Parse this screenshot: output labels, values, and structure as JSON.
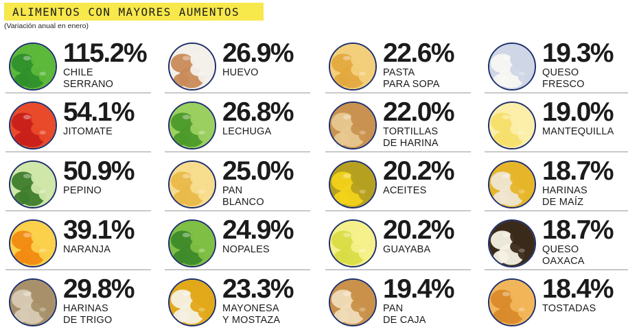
{
  "header": {
    "title": "ALIMENTOS CON MAYORES AUMENTOS",
    "subtitle": "(Variación anual en enero)",
    "accent_color": "#f7e84b",
    "ring_color": "#1e2f6b"
  },
  "items": [
    {
      "pct": "115.2%",
      "line1": "CHILE",
      "line2": "SERRANO",
      "icon": "chile-serrano-icon",
      "colors": [
        "#2f8f2a",
        "#5cb83a"
      ]
    },
    {
      "pct": "54.1%",
      "line1": "JITOMATE",
      "line2": "",
      "icon": "jitomate-icon",
      "colors": [
        "#c8201a",
        "#e94a2a"
      ]
    },
    {
      "pct": "50.9%",
      "line1": "PEPINO",
      "line2": "",
      "icon": "pepino-icon",
      "colors": [
        "#3e7d2c",
        "#cfe7a8"
      ]
    },
    {
      "pct": "39.1%",
      "line1": "NARANJA",
      "line2": "",
      "icon": "naranja-icon",
      "colors": [
        "#f28a12",
        "#fbd04a"
      ]
    },
    {
      "pct": "29.8%",
      "line1": "HARINAS",
      "line2": "DE TRIGO",
      "icon": "harina-trigo-icon",
      "colors": [
        "#d8cbb4",
        "#a8916a"
      ]
    },
    {
      "pct": "26.9%",
      "line1": "HUEVO",
      "line2": "",
      "icon": "huevo-icon",
      "colors": [
        "#c98a5a",
        "#f3f0ea"
      ]
    },
    {
      "pct": "26.8%",
      "line1": "LECHUGA",
      "line2": "",
      "icon": "lechuga-icon",
      "colors": [
        "#4c9a2a",
        "#9bd060"
      ]
    },
    {
      "pct": "25.0%",
      "line1": "PAN",
      "line2": "BLANCO",
      "icon": "pan-blanco-icon",
      "colors": [
        "#e9b94a",
        "#f7dc8e"
      ]
    },
    {
      "pct": "24.9%",
      "line1": "NOPALES",
      "line2": "",
      "icon": "nopales-icon",
      "colors": [
        "#3f8a2a",
        "#7fbf45"
      ]
    },
    {
      "pct": "23.3%",
      "line1": "MAYONESA",
      "line2": "Y MOSTAZA",
      "icon": "mayonesa-mostaza-icon",
      "colors": [
        "#f4f0e2",
        "#e1a91a"
      ]
    },
    {
      "pct": "22.6%",
      "line1": "PASTA",
      "line2": "PARA SOPA",
      "icon": "pasta-icon",
      "colors": [
        "#e3a93f",
        "#f3cf7b"
      ]
    },
    {
      "pct": "22.0%",
      "line1": "TORTILLAS",
      "line2": "DE HARINA",
      "icon": "tortillas-harina-icon",
      "colors": [
        "#e8c88f",
        "#c99250"
      ]
    },
    {
      "pct": "20.2%",
      "line1": "ACEITES",
      "line2": "",
      "icon": "aceites-icon",
      "colors": [
        "#f2d21a",
        "#b6a020"
      ]
    },
    {
      "pct": "20.2%",
      "line1": "GUAYABA",
      "line2": "",
      "icon": "guayaba-icon",
      "colors": [
        "#d9dc46",
        "#f5f08a"
      ]
    },
    {
      "pct": "19.4%",
      "line1": "PAN",
      "line2": "DE CAJA",
      "icon": "pan-caja-icon",
      "colors": [
        "#f0dcb8",
        "#c9914a"
      ]
    },
    {
      "pct": "19.3%",
      "line1": "QUESO",
      "line2": "FRESCO",
      "icon": "queso-fresco-icon",
      "colors": [
        "#f7f7f3",
        "#cfd6e6"
      ]
    },
    {
      "pct": "19.0%",
      "line1": "MANTEQUILLA",
      "line2": "",
      "icon": "mantequilla-icon",
      "colors": [
        "#f6de6a",
        "#fbeeaa"
      ]
    },
    {
      "pct": "18.7%",
      "line1": "HARINAS",
      "line2": "DE MAÍZ",
      "icon": "harina-maiz-icon",
      "colors": [
        "#efe6d2",
        "#e6b52a"
      ]
    },
    {
      "pct": "18.7%",
      "line1": "QUESO",
      "line2": "OAXACA",
      "icon": "queso-oaxaca-icon",
      "colors": [
        "#f6f2e4",
        "#3a2a1a"
      ]
    },
    {
      "pct": "18.4%",
      "line1": "TOSTADAS",
      "line2": "",
      "icon": "tostadas-icon",
      "colors": [
        "#d98a2a",
        "#f1b65a"
      ]
    }
  ]
}
